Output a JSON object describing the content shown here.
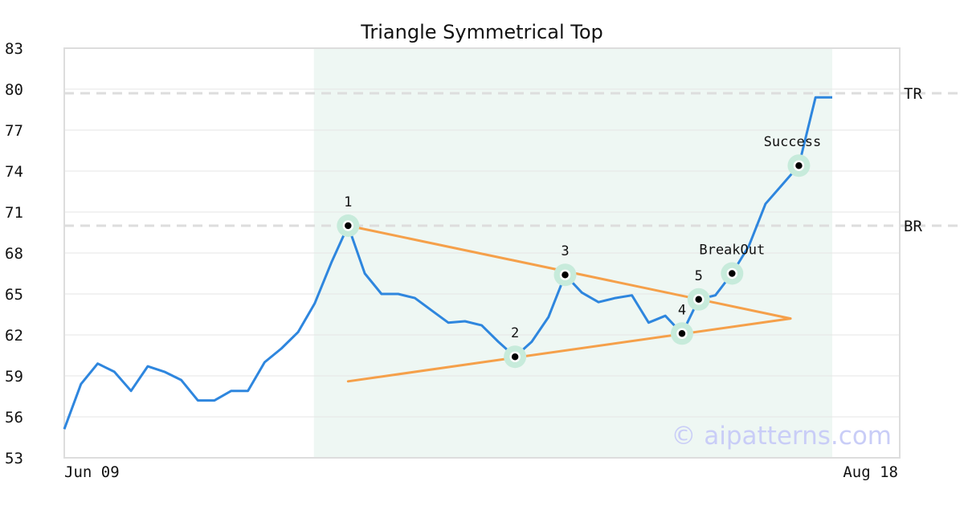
{
  "chart_data": {
    "type": "line",
    "title": "Triangle Symmetrical Top",
    "x_start_label": "Jun 09",
    "x_end_label": "Aug 18",
    "ylim": [
      53,
      83
    ],
    "yticks": [
      53,
      56,
      59,
      62,
      65,
      68,
      71,
      74,
      77,
      80,
      83
    ],
    "grid": true,
    "series": [
      {
        "values": [
          55.1,
          58.4,
          59.9,
          59.3,
          57.9,
          59.7,
          59.3,
          58.7,
          57.2,
          57.2,
          57.9,
          57.9,
          60.0,
          61.0,
          62.2,
          64.3,
          67.3,
          70.0,
          66.5,
          65.0,
          65.0,
          64.7,
          63.8,
          62.9,
          63.0,
          62.7,
          61.5,
          60.4,
          61.5,
          63.3,
          66.4,
          65.1,
          64.4,
          64.7,
          64.9,
          62.9,
          63.4,
          62.1,
          64.6,
          64.9,
          66.5,
          68.5,
          71.6,
          73.0,
          74.4,
          79.4,
          79.4
        ]
      }
    ],
    "levels": [
      {
        "label": "TR",
        "value": 79.7
      },
      {
        "label": "BR",
        "value": 70.0
      }
    ],
    "pattern_region": {
      "start_index": 15,
      "end_index": 46
    },
    "trendlines": [
      {
        "from": [
          17,
          70.0
        ],
        "to": [
          43.5,
          63.2
        ]
      },
      {
        "from": [
          17,
          58.6
        ],
        "to": [
          43.5,
          63.2
        ]
      }
    ],
    "markers": [
      {
        "label": "1",
        "index": 17,
        "value": 70.0
      },
      {
        "label": "2",
        "index": 27,
        "value": 60.4
      },
      {
        "label": "3",
        "index": 30,
        "value": 66.4
      },
      {
        "label": "4",
        "index": 37,
        "value": 62.1
      },
      {
        "label": "5",
        "index": 38,
        "value": 64.6
      },
      {
        "label": "BreakOut",
        "index": 40,
        "value": 66.5
      },
      {
        "label": "Success",
        "index": 44,
        "value": 74.4
      }
    ]
  },
  "watermark": "© aipatterns.com",
  "colors": {
    "line": "#2e86de",
    "trendline": "#f5a04a",
    "band": "#eef7f3",
    "marker_halo": "#c7ebdb",
    "grid": "#e6e6e6",
    "level": "#dddddd",
    "frame": "#dddddd"
  }
}
